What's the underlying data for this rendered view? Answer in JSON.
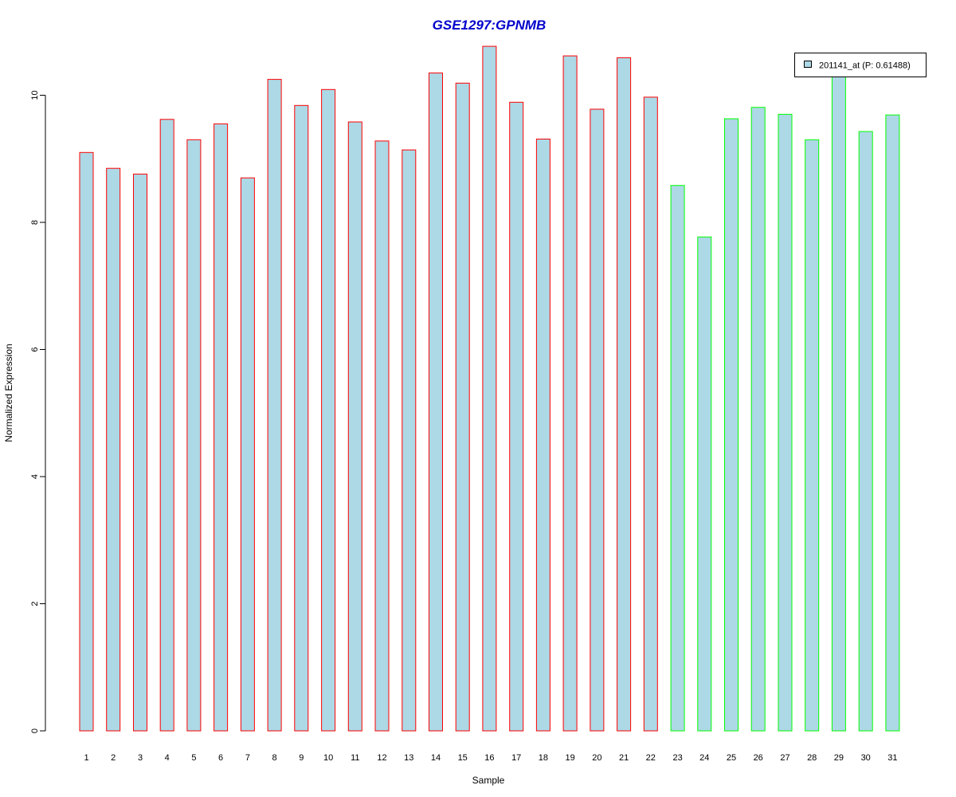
{
  "chart_data": {
    "type": "bar",
    "title": "GSE1297:GPNMB",
    "xlabel": "Sample",
    "ylabel": "Normalized Expression",
    "categories": [
      "1",
      "2",
      "3",
      "4",
      "5",
      "6",
      "7",
      "8",
      "9",
      "10",
      "11",
      "12",
      "13",
      "14",
      "15",
      "16",
      "17",
      "18",
      "19",
      "20",
      "21",
      "22",
      "23",
      "24",
      "25",
      "26",
      "27",
      "28",
      "29",
      "30",
      "31"
    ],
    "values": [
      9.1,
      8.85,
      8.76,
      9.62,
      9.3,
      9.55,
      8.7,
      10.25,
      9.84,
      10.09,
      9.58,
      9.28,
      9.14,
      10.35,
      10.19,
      10.77,
      9.89,
      9.31,
      10.62,
      9.78,
      10.59,
      9.97,
      8.58,
      7.77,
      9.63,
      9.81,
      9.7,
      9.3,
      10.42,
      9.43,
      9.69
    ],
    "groups": [
      "red",
      "red",
      "red",
      "red",
      "red",
      "red",
      "red",
      "red",
      "red",
      "red",
      "red",
      "red",
      "red",
      "red",
      "red",
      "red",
      "red",
      "red",
      "red",
      "red",
      "red",
      "red",
      "green",
      "green",
      "green",
      "green",
      "green",
      "green",
      "green",
      "green",
      "green"
    ],
    "yticks": [
      "0",
      "2",
      "4",
      "6",
      "8",
      "10"
    ],
    "ylim": [
      0,
      10.8
    ],
    "grid": false,
    "legend": {
      "label": "201141_at (P: 0.61488)",
      "placement": "top-right"
    },
    "colors": {
      "title": "#0000CC",
      "bar_fill": "#ADD8E6",
      "border_red": "#FF0000",
      "border_green": "#00FF00",
      "axis": "#000000"
    }
  }
}
